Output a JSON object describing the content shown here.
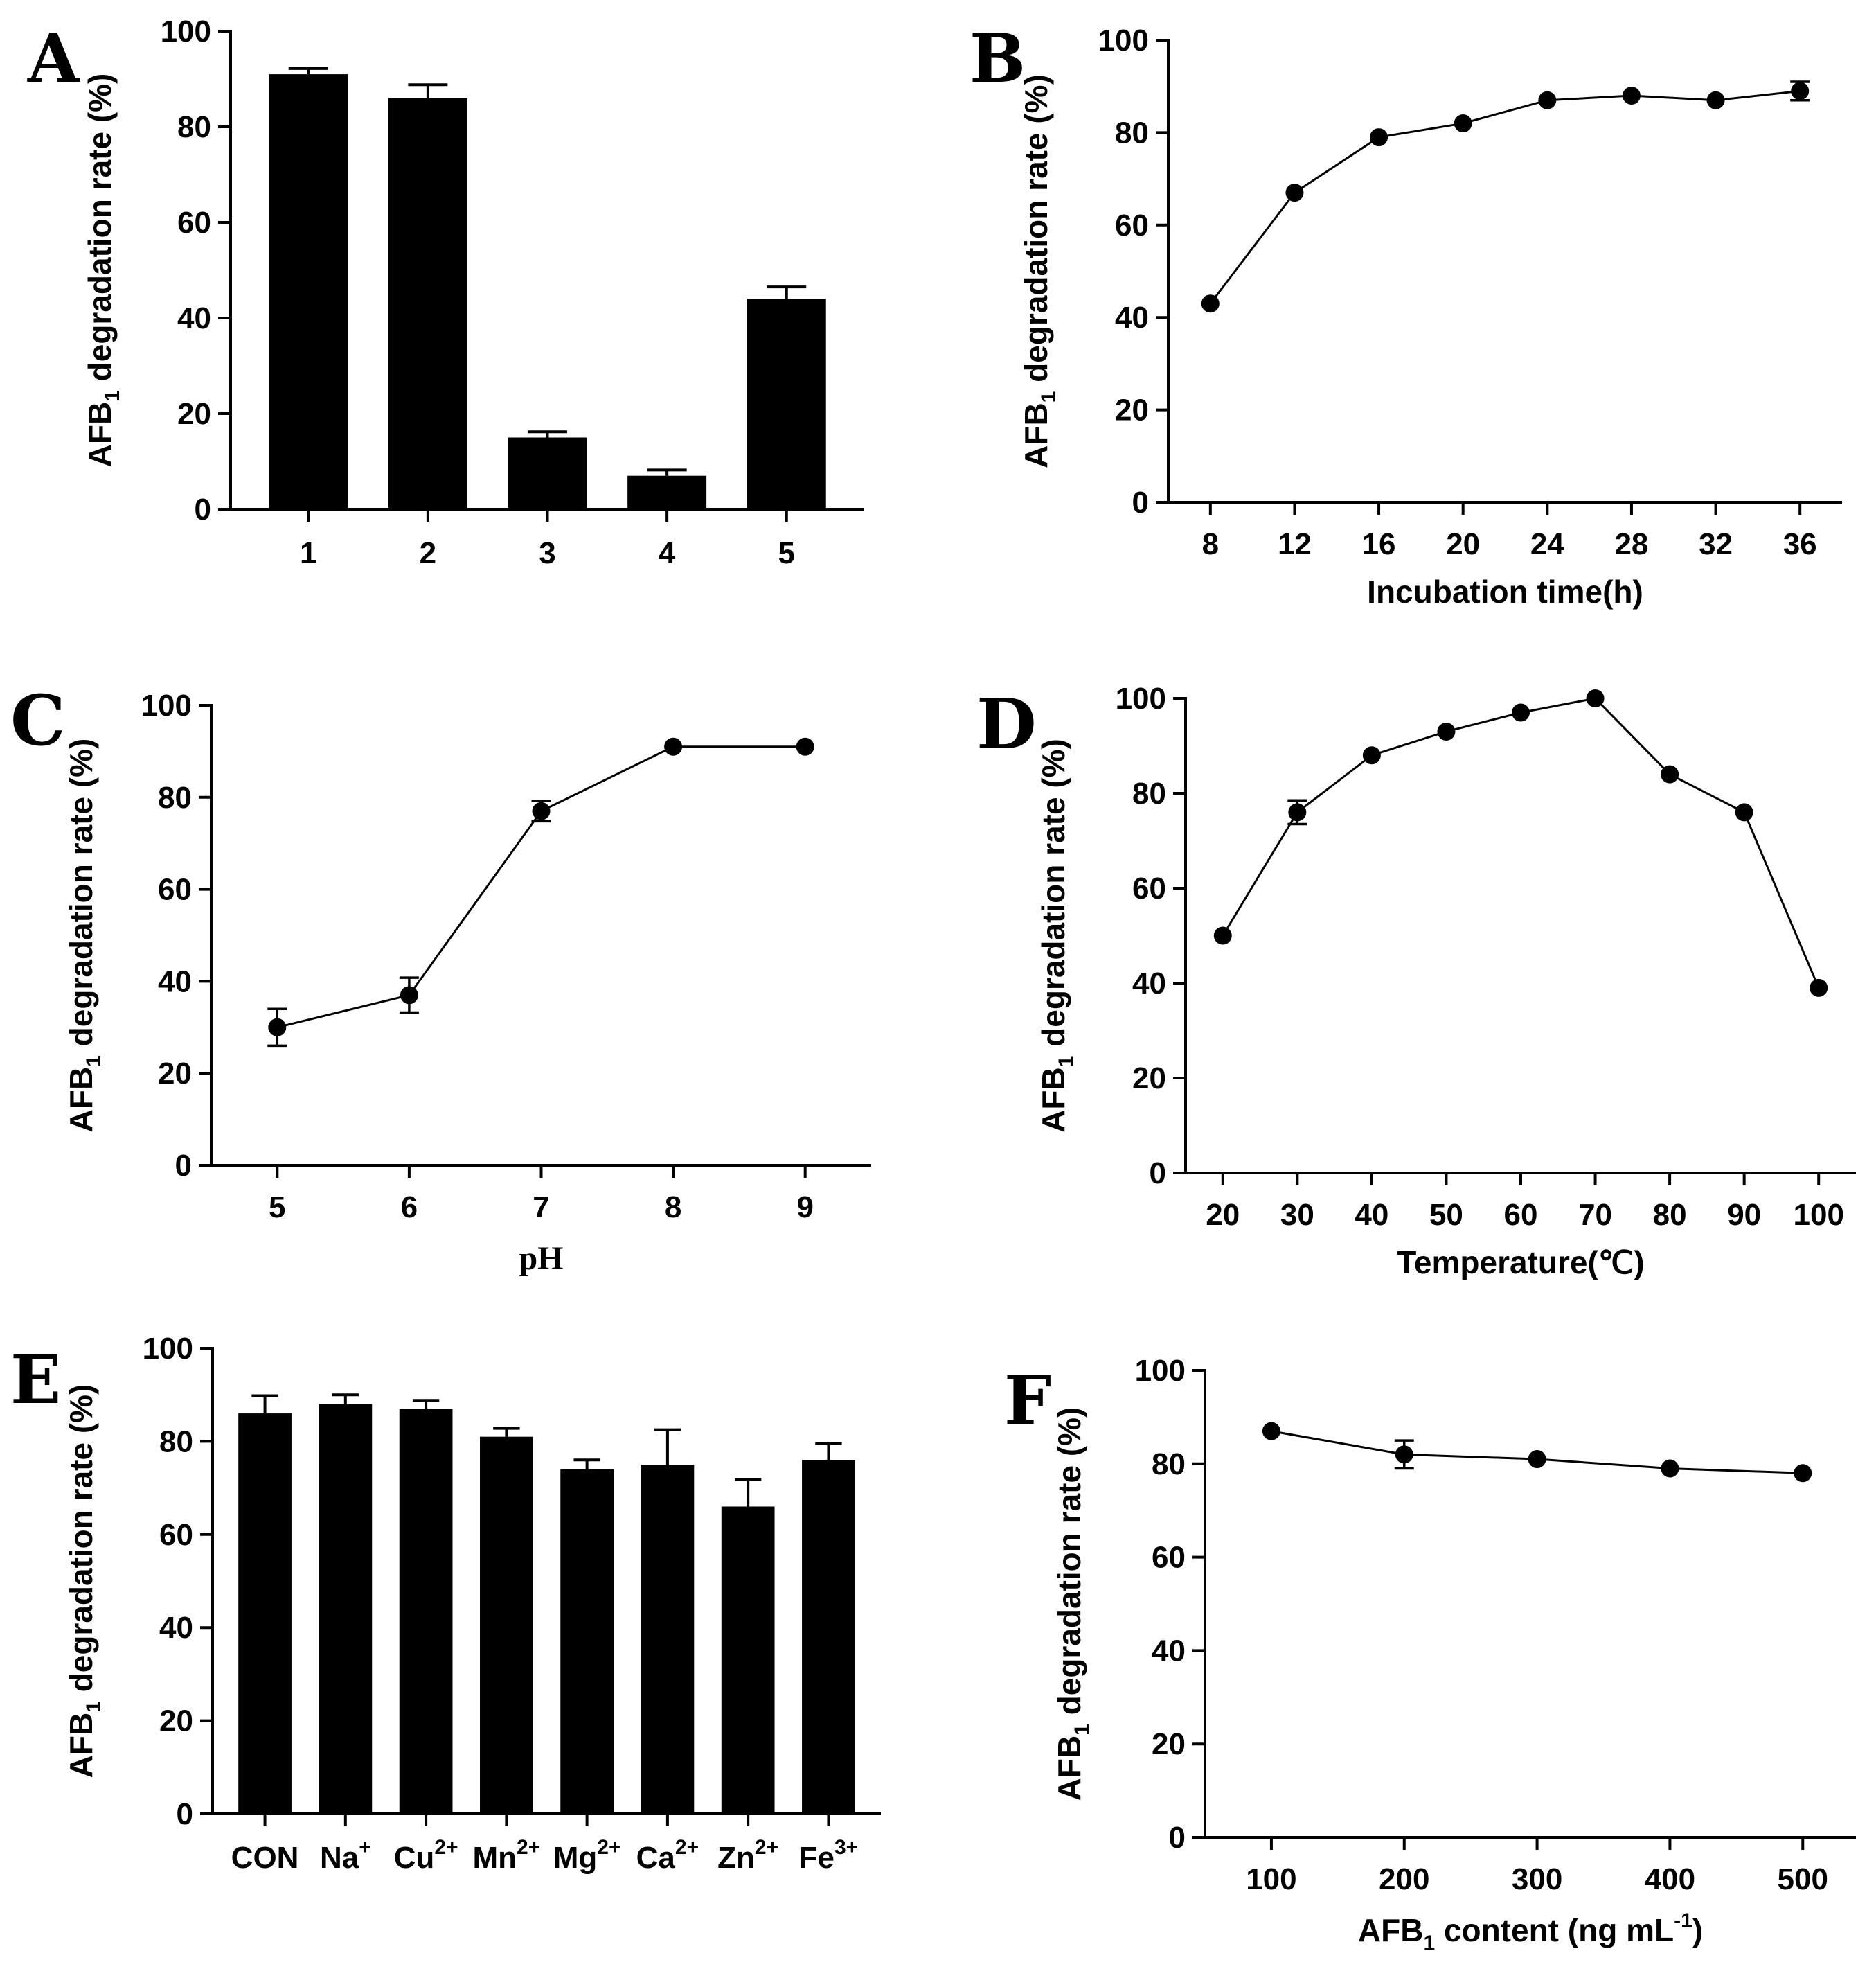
{
  "figure": {
    "ylabel_prefix": "AFB",
    "ylabel_sub": "1",
    "ylabel_suffix": " degradation rate (%)"
  },
  "chart_data": [
    {
      "panel": "A",
      "type": "bar",
      "categories": [
        "1",
        "2",
        "3",
        "4",
        "5"
      ],
      "values": [
        91,
        86,
        15,
        7,
        44
      ],
      "errors": [
        1.2,
        2.8,
        1.2,
        1.2,
        2.5
      ],
      "ylim": [
        0,
        100
      ],
      "yticks": [
        0,
        20,
        40,
        60,
        80,
        100
      ],
      "xlabel": ""
    },
    {
      "panel": "B",
      "type": "line",
      "x": [
        8,
        12,
        16,
        20,
        24,
        28,
        32,
        36
      ],
      "values": [
        43,
        67,
        79,
        82,
        87,
        88,
        87,
        89
      ],
      "errors": [
        0,
        0,
        0,
        0,
        0,
        0,
        0,
        2
      ],
      "xlim": [
        6,
        38
      ],
      "xticks": [
        "8",
        "12",
        "16",
        "20",
        "24",
        "28",
        "32",
        "36"
      ],
      "ylim": [
        0,
        100
      ],
      "yticks": [
        0,
        20,
        40,
        60,
        80,
        100
      ],
      "xlabel": "Incubation time(h)"
    },
    {
      "panel": "C",
      "type": "line",
      "x": [
        5,
        6,
        7,
        8,
        9
      ],
      "values": [
        30,
        37,
        77,
        91,
        91
      ],
      "errors": [
        4,
        3.8,
        2.2,
        0,
        0
      ],
      "xlim": [
        4.5,
        9.5
      ],
      "xticks": [
        "5",
        "6",
        "7",
        "8",
        "9"
      ],
      "ylim": [
        0,
        100
      ],
      "yticks": [
        0,
        20,
        40,
        60,
        80,
        100
      ],
      "xlabel": "pH"
    },
    {
      "panel": "D",
      "type": "line",
      "x": [
        20,
        30,
        40,
        50,
        60,
        70,
        80,
        90,
        100
      ],
      "values": [
        50,
        76,
        88,
        93,
        97,
        100,
        84,
        76,
        39
      ],
      "errors": [
        0,
        2.5,
        0,
        0,
        0,
        0,
        0,
        0,
        0
      ],
      "xlim": [
        15,
        105
      ],
      "xticks": [
        "20",
        "30",
        "40",
        "50",
        "60",
        "70",
        "80",
        "90",
        "100"
      ],
      "ylim": [
        0,
        100
      ],
      "yticks": [
        0,
        20,
        40,
        60,
        80,
        100
      ],
      "xlabel": "Temperature(℃)"
    },
    {
      "panel": "E",
      "type": "bar",
      "categories": [
        "CON",
        "Na",
        "Cu",
        "Mn",
        "Mg",
        "Ca",
        "Zn",
        "Fe"
      ],
      "category_sups": [
        "",
        "+",
        "2+",
        "2+",
        "2+",
        "2+",
        "2+",
        "3+"
      ],
      "values": [
        86,
        88,
        87,
        81,
        74,
        75,
        66,
        76
      ],
      "errors": [
        3.8,
        2,
        1.8,
        1.8,
        2,
        7.5,
        5.8,
        3.5
      ],
      "ylim": [
        0,
        100
      ],
      "yticks": [
        0,
        20,
        40,
        60,
        80,
        100
      ],
      "xlabel": ""
    },
    {
      "panel": "F",
      "type": "line",
      "x": [
        100,
        200,
        300,
        400,
        500
      ],
      "values": [
        87,
        82,
        81,
        79,
        78
      ],
      "errors": [
        0,
        3,
        0,
        0,
        0
      ],
      "xlim": [
        50,
        540
      ],
      "xticks": [
        "100",
        "200",
        "300",
        "400",
        "500"
      ],
      "ylim": [
        0,
        100
      ],
      "yticks": [
        0,
        20,
        40,
        60,
        80,
        100
      ],
      "xlabel_prefix": "AFB",
      "xlabel_sub": "1",
      "xlabel_mid": " content (ng mL",
      "xlabel_sup": "-1",
      "xlabel_end": ")"
    }
  ]
}
